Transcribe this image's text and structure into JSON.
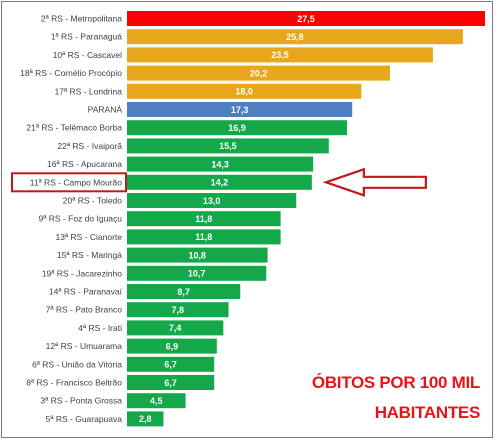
{
  "chart_data": {
    "type": "bar",
    "orientation": "horizontal",
    "categories": [
      "2ª RS - Metropolitana",
      "1ª RS - Paranaguá",
      "10ª RS - Cascavel",
      "18ª RS - Cornélio Procópio",
      "17ª RS - Londrina",
      "PARANÁ",
      "21ª RS - Telêmaco Borba",
      "22ª RS - Ivaiporã",
      "16ª RS - Apucarana",
      "11ª RS - Campo Mourão",
      "20ª RS - Toledo",
      "9ª RS - Foz do Iguaçu",
      "13ª RS - Cianorte",
      "15ª RS - Maringá",
      "19ª RS - Jacarezinho",
      "14ª RS - Paranavaí",
      "7ª RS - Pato Branco",
      "4ª RS - Irati",
      "12ª RS - Umuarama",
      "6ª RS - União da Vitória",
      "8ª RS - Francisco Beltrão",
      "3ª RS - Ponta Grossa",
      "5ª RS - Guarapuava"
    ],
    "values": [
      27.5,
      25.8,
      23.5,
      20.2,
      18.0,
      17.3,
      16.9,
      15.5,
      14.3,
      14.2,
      13.0,
      11.8,
      11.8,
      10.8,
      10.7,
      8.7,
      7.8,
      7.4,
      6.9,
      6.7,
      6.7,
      4.5,
      2.8
    ],
    "value_labels": [
      "27,5",
      "25,8",
      "23,5",
      "20,2",
      "18,0",
      "17,3",
      "16,9",
      "15,5",
      "14,3",
      "14,2",
      "13,0",
      "11,8",
      "11,8",
      "10,8",
      "10,7",
      "8,7",
      "7,8",
      "7,4",
      "6,9",
      "6,7",
      "6,7",
      "4,5",
      "2,8"
    ],
    "bar_colors": [
      "#ff0000",
      "#e8a71a",
      "#e8a71a",
      "#e8a71a",
      "#e8a71a",
      "#4f7fc0",
      "#14a84b",
      "#14a84b",
      "#14a84b",
      "#14a84b",
      "#14a84b",
      "#14a84b",
      "#14a84b",
      "#14a84b",
      "#14a84b",
      "#14a84b",
      "#14a84b",
      "#14a84b",
      "#14a84b",
      "#14a84b",
      "#14a84b",
      "#14a84b",
      "#14a84b"
    ],
    "xlim": [
      0,
      27.5
    ],
    "grid": false,
    "highlighted_category": "11ª RS - Campo Mourão",
    "annotation": "ÓBITOS POR 100 MIL HABITANTES"
  },
  "colors": {
    "highlight_box": "#c0191f",
    "arrow": "#c0191f",
    "annotation": "#e8141a"
  }
}
